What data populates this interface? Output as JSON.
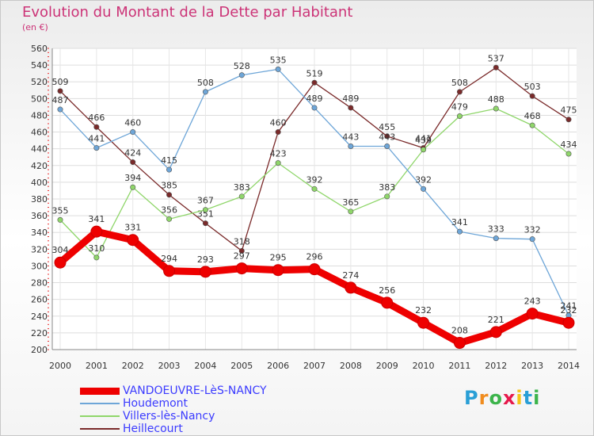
{
  "title": "Evolution du Montant de la Dette par Habitant",
  "subtitle": "(en €)",
  "logo": {
    "text": "Proxiti",
    "colors": [
      "#2a9fd6",
      "#f08c1e",
      "#3cb44b",
      "#e6194b",
      "#f5c518",
      "#2a9fd6",
      "#3cb44b"
    ]
  },
  "chart_data": {
    "type": "line",
    "title": "Evolution du Montant de la Dette par Habitant",
    "subtitle": "(en €)",
    "x": [
      "2000",
      "2001",
      "2002",
      "2003",
      "2004",
      "2005",
      "2006",
      "2007",
      "2008",
      "2009",
      "2010",
      "2011",
      "2012",
      "2013",
      "2014"
    ],
    "ylim": [
      200,
      560
    ],
    "yticks": [
      200,
      220,
      240,
      260,
      280,
      300,
      320,
      340,
      360,
      380,
      400,
      420,
      440,
      460,
      480,
      500,
      520,
      540,
      560
    ],
    "grid": true,
    "legend_position": "bottom-left",
    "series": [
      {
        "name": "VANDOEUVRE-LèS-NANCY",
        "color": "#ee0000",
        "values": [
          304,
          341,
          331,
          294,
          293,
          297,
          295,
          296,
          274,
          256,
          232,
          208,
          221,
          243,
          232
        ]
      },
      {
        "name": "Houdemont",
        "color": "#6ea6d8",
        "values": [
          487,
          441,
          460,
          415,
          508,
          528,
          535,
          489,
          443,
          443,
          392,
          341,
          333,
          332,
          241
        ]
      },
      {
        "name": "Villers-lès-Nancy",
        "color": "#8fd66a",
        "values": [
          355,
          310,
          394,
          356,
          367,
          383,
          423,
          392,
          365,
          383,
          439,
          479,
          488,
          468,
          434
        ]
      },
      {
        "name": "Heillecourt",
        "color": "#7a2a2a",
        "values": [
          509,
          466,
          424,
          385,
          351,
          318,
          460,
          519,
          489,
          455,
          441,
          508,
          537,
          503,
          475
        ]
      }
    ]
  }
}
